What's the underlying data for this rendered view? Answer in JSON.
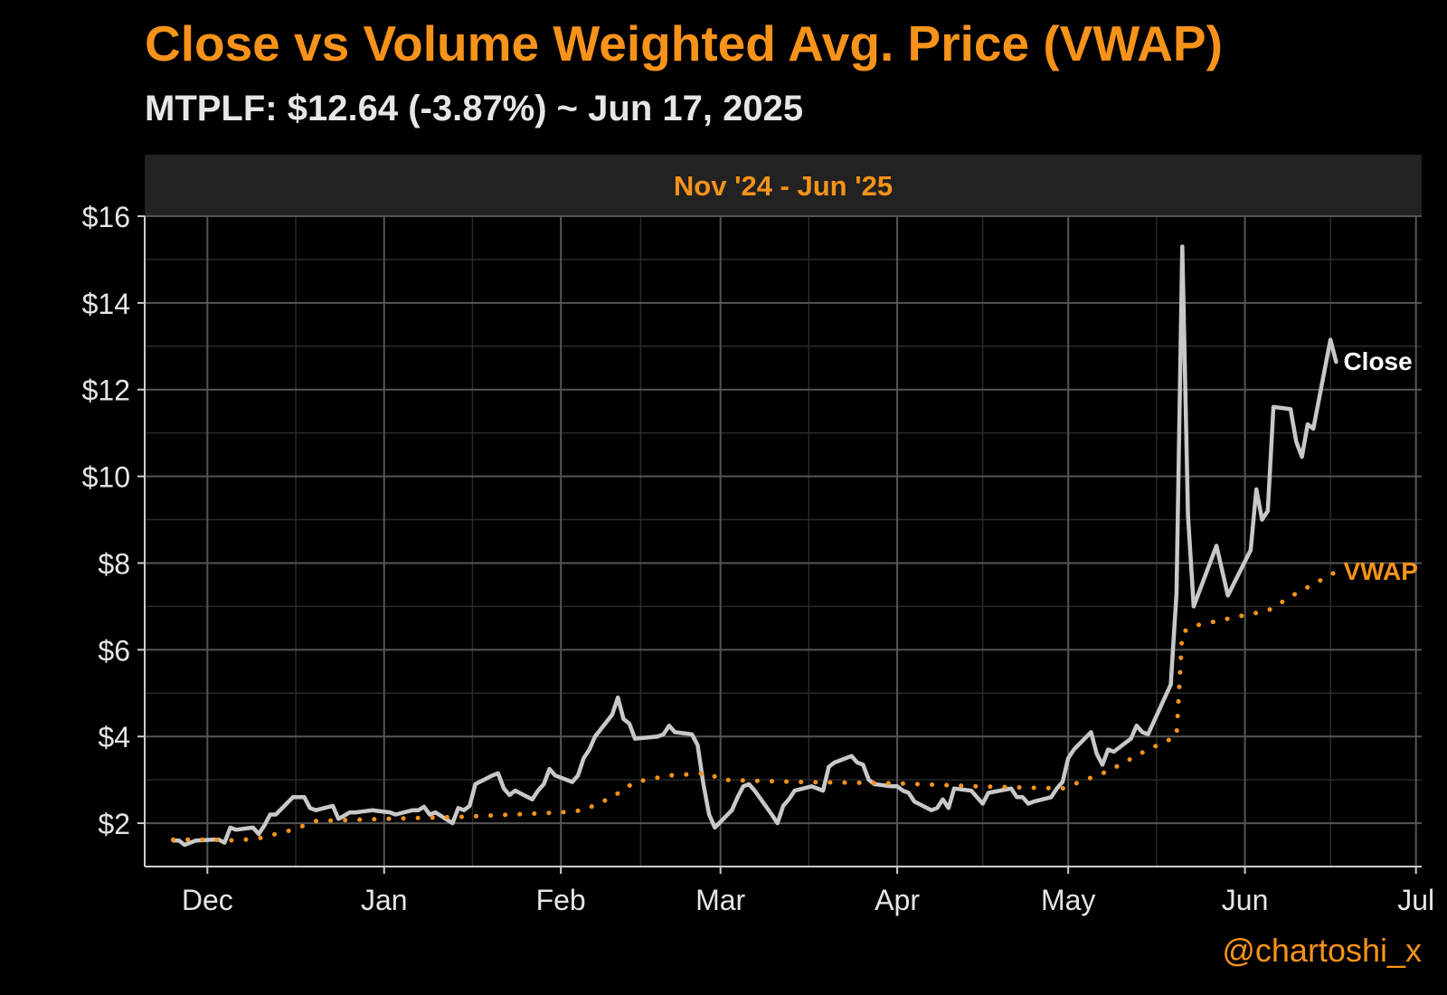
{
  "title": "Close vs Volume Weighted Avg. Price (VWAP)",
  "subtitle": "MTPLF: $12.64 (-3.87%) ~ Jun 17, 2025",
  "watermark": "@chartoshi_x",
  "colors": {
    "background": "#000000",
    "accent": "#F7931A",
    "close_line": "#C8C8C8",
    "grid_major": "#555555",
    "grid_minor": "#2A2A2A",
    "panel_strip": "#222222",
    "text": "#E6E6E6"
  },
  "chart_data": {
    "type": "line",
    "panel_label": "Nov '24 - Jun '25",
    "x_range": [
      "2024-11-20",
      "2025-07-02"
    ],
    "ylim": [
      1,
      16
    ],
    "y_ticks": [
      2,
      4,
      6,
      8,
      10,
      12,
      14,
      16
    ],
    "y_tick_labels": [
      "$2",
      "$4",
      "$6",
      "$8",
      "$10",
      "$12",
      "$14",
      "$16"
    ],
    "x_ticks": [
      "2024-12-01",
      "2025-01-01",
      "2025-02-01",
      "2025-03-01",
      "2025-04-01",
      "2025-05-01",
      "2025-06-01",
      "2025-07-01"
    ],
    "x_tick_labels": [
      "Dec",
      "Jan",
      "Feb",
      "Mar",
      "Apr",
      "May",
      "Jun",
      "Jul"
    ],
    "grid": true,
    "legend": "direct-labels-right",
    "series": [
      {
        "name": "Close",
        "style": "solid",
        "points": [
          [
            "2024-11-25",
            1.6
          ],
          [
            "2024-11-26",
            1.6
          ],
          [
            "2024-11-27",
            1.5
          ],
          [
            "2024-11-29",
            1.6
          ],
          [
            "2024-12-02",
            1.62
          ],
          [
            "2024-12-03",
            1.62
          ],
          [
            "2024-12-04",
            1.55
          ],
          [
            "2024-12-05",
            1.9
          ],
          [
            "2024-12-06",
            1.85
          ],
          [
            "2024-12-09",
            1.9
          ],
          [
            "2024-12-10",
            1.75
          ],
          [
            "2024-12-11",
            1.95
          ],
          [
            "2024-12-12",
            2.2
          ],
          [
            "2024-12-13",
            2.2
          ],
          [
            "2024-12-16",
            2.6
          ],
          [
            "2024-12-17",
            2.6
          ],
          [
            "2024-12-18",
            2.6
          ],
          [
            "2024-12-19",
            2.35
          ],
          [
            "2024-12-20",
            2.3
          ],
          [
            "2024-12-23",
            2.4
          ],
          [
            "2024-12-24",
            2.1
          ],
          [
            "2024-12-26",
            2.25
          ],
          [
            "2024-12-27",
            2.25
          ],
          [
            "2024-12-30",
            2.3
          ],
          [
            "2024-12-31",
            2.28
          ],
          [
            "2025-01-02",
            2.25
          ],
          [
            "2025-01-03",
            2.2
          ],
          [
            "2025-01-06",
            2.3
          ],
          [
            "2025-01-07",
            2.3
          ],
          [
            "2025-01-08",
            2.38
          ],
          [
            "2025-01-09",
            2.2
          ],
          [
            "2025-01-10",
            2.25
          ],
          [
            "2025-01-13",
            2.0
          ],
          [
            "2025-01-14",
            2.35
          ],
          [
            "2025-01-15",
            2.3
          ],
          [
            "2025-01-16",
            2.4
          ],
          [
            "2025-01-17",
            2.9
          ],
          [
            "2025-01-20",
            3.1
          ],
          [
            "2025-01-21",
            3.15
          ],
          [
            "2025-01-22",
            2.8
          ],
          [
            "2025-01-23",
            2.65
          ],
          [
            "2025-01-24",
            2.75
          ],
          [
            "2025-01-27",
            2.55
          ],
          [
            "2025-01-28",
            2.75
          ],
          [
            "2025-01-29",
            2.9
          ],
          [
            "2025-01-30",
            3.25
          ],
          [
            "2025-01-31",
            3.1
          ],
          [
            "2025-02-03",
            2.95
          ],
          [
            "2025-02-04",
            3.1
          ],
          [
            "2025-02-05",
            3.5
          ],
          [
            "2025-02-06",
            3.7
          ],
          [
            "2025-02-07",
            4.0
          ],
          [
            "2025-02-10",
            4.5
          ],
          [
            "2025-02-11",
            4.9
          ],
          [
            "2025-02-12",
            4.4
          ],
          [
            "2025-02-13",
            4.3
          ],
          [
            "2025-02-14",
            3.95
          ],
          [
            "2025-02-18",
            4.0
          ],
          [
            "2025-02-19",
            4.05
          ],
          [
            "2025-02-20",
            4.25
          ],
          [
            "2025-02-21",
            4.1
          ],
          [
            "2025-02-24",
            4.05
          ],
          [
            "2025-02-25",
            3.8
          ],
          [
            "2025-02-26",
            2.9
          ],
          [
            "2025-02-27",
            2.2
          ],
          [
            "2025-02-28",
            1.9
          ],
          [
            "2025-03-03",
            2.3
          ],
          [
            "2025-03-04",
            2.6
          ],
          [
            "2025-03-05",
            2.85
          ],
          [
            "2025-03-06",
            2.9
          ],
          [
            "2025-03-07",
            2.75
          ],
          [
            "2025-03-10",
            2.2
          ],
          [
            "2025-03-11",
            2.0
          ],
          [
            "2025-03-12",
            2.4
          ],
          [
            "2025-03-13",
            2.55
          ],
          [
            "2025-03-14",
            2.75
          ],
          [
            "2025-03-17",
            2.85
          ],
          [
            "2025-03-18",
            2.8
          ],
          [
            "2025-03-19",
            2.75
          ],
          [
            "2025-03-20",
            3.3
          ],
          [
            "2025-03-21",
            3.4
          ],
          [
            "2025-03-24",
            3.55
          ],
          [
            "2025-03-25",
            3.4
          ],
          [
            "2025-03-26",
            3.35
          ],
          [
            "2025-03-27",
            3.0
          ],
          [
            "2025-03-28",
            2.9
          ],
          [
            "2025-03-31",
            2.85
          ],
          [
            "2025-04-01",
            2.85
          ],
          [
            "2025-04-02",
            2.75
          ],
          [
            "2025-04-03",
            2.7
          ],
          [
            "2025-04-04",
            2.5
          ],
          [
            "2025-04-07",
            2.3
          ],
          [
            "2025-04-08",
            2.35
          ],
          [
            "2025-04-09",
            2.55
          ],
          [
            "2025-04-10",
            2.35
          ],
          [
            "2025-04-11",
            2.8
          ],
          [
            "2025-04-14",
            2.75
          ],
          [
            "2025-04-15",
            2.6
          ],
          [
            "2025-04-16",
            2.45
          ],
          [
            "2025-04-17",
            2.7
          ],
          [
            "2025-04-21",
            2.8
          ],
          [
            "2025-04-22",
            2.6
          ],
          [
            "2025-04-23",
            2.6
          ],
          [
            "2025-04-24",
            2.45
          ],
          [
            "2025-04-25",
            2.5
          ],
          [
            "2025-04-28",
            2.6
          ],
          [
            "2025-04-29",
            2.8
          ],
          [
            "2025-04-30",
            2.95
          ],
          [
            "2025-05-01",
            3.5
          ],
          [
            "2025-05-02",
            3.7
          ],
          [
            "2025-05-05",
            4.1
          ],
          [
            "2025-05-06",
            3.6
          ],
          [
            "2025-05-07",
            3.35
          ],
          [
            "2025-05-08",
            3.7
          ],
          [
            "2025-05-09",
            3.65
          ],
          [
            "2025-05-12",
            3.95
          ],
          [
            "2025-05-13",
            4.25
          ],
          [
            "2025-05-14",
            4.1
          ],
          [
            "2025-05-15",
            4.05
          ],
          [
            "2025-05-19",
            5.2
          ],
          [
            "2025-05-20",
            7.3
          ],
          [
            "2025-05-21",
            15.3
          ],
          [
            "2025-05-22",
            9.1
          ],
          [
            "2025-05-23",
            7.0
          ],
          [
            "2025-05-27",
            8.4
          ],
          [
            "2025-05-29",
            7.25
          ],
          [
            "2025-06-02",
            8.3
          ],
          [
            "2025-06-03",
            9.7
          ],
          [
            "2025-06-04",
            9.0
          ],
          [
            "2025-06-05",
            9.2
          ],
          [
            "2025-06-06",
            11.6
          ],
          [
            "2025-06-09",
            11.55
          ],
          [
            "2025-06-10",
            10.8
          ],
          [
            "2025-06-11",
            10.45
          ],
          [
            "2025-06-12",
            11.2
          ],
          [
            "2025-06-13",
            11.1
          ],
          [
            "2025-06-16",
            13.15
          ],
          [
            "2025-06-17",
            12.64
          ]
        ]
      },
      {
        "name": "VWAP",
        "style": "dotted",
        "points": [
          [
            "2024-11-25",
            1.62
          ],
          [
            "2024-12-02",
            1.62
          ],
          [
            "2024-12-06",
            1.6
          ],
          [
            "2024-12-10",
            1.65
          ],
          [
            "2024-12-16",
            1.85
          ],
          [
            "2024-12-20",
            2.05
          ],
          [
            "2025-01-01",
            2.1
          ],
          [
            "2025-01-15",
            2.15
          ],
          [
            "2025-02-01",
            2.25
          ],
          [
            "2025-02-05",
            2.3
          ],
          [
            "2025-02-10",
            2.6
          ],
          [
            "2025-02-14",
            2.95
          ],
          [
            "2025-02-20",
            3.1
          ],
          [
            "2025-02-27",
            3.15
          ],
          [
            "2025-03-01",
            3.0
          ],
          [
            "2025-03-15",
            2.95
          ],
          [
            "2025-04-01",
            2.92
          ],
          [
            "2025-04-15",
            2.85
          ],
          [
            "2025-04-30",
            2.8
          ],
          [
            "2025-05-08",
            3.2
          ],
          [
            "2025-05-15",
            3.7
          ],
          [
            "2025-05-20",
            4.0
          ],
          [
            "2025-05-21",
            6.4
          ],
          [
            "2025-05-23",
            6.55
          ],
          [
            "2025-06-01",
            6.8
          ],
          [
            "2025-06-05",
            6.9
          ],
          [
            "2025-06-10",
            7.3
          ],
          [
            "2025-06-17",
            7.8
          ]
        ]
      }
    ]
  }
}
